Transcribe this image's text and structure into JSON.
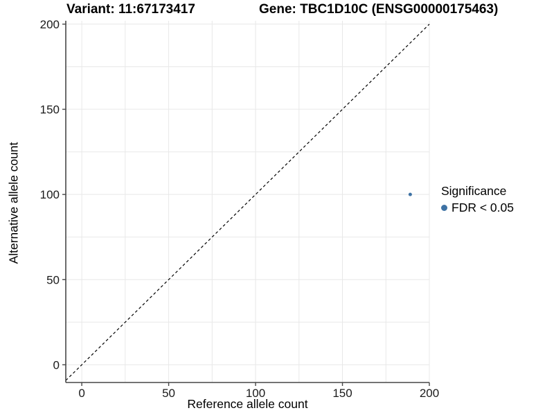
{
  "header": {
    "variant_title": "Variant: 11:67173417",
    "gene_title": "Gene: TBC1D10C (ENSG00000175463)"
  },
  "chart_data": {
    "type": "scatter",
    "title_left": "Variant: 11:67173417",
    "title_right": "Gene: TBC1D10C (ENSG00000175463)",
    "xlabel": "Reference allele count",
    "ylabel": "Alternative allele count",
    "xlim": [
      -9.2,
      200
    ],
    "ylim": [
      -10.4,
      202
    ],
    "x_ticks": [
      0,
      50,
      100,
      150,
      200
    ],
    "y_ticks": [
      0,
      50,
      100,
      150,
      200
    ],
    "grid": true,
    "grid_step": 25,
    "grid_color": "#e8e8e8",
    "axis_color": "#464646",
    "reference_line": {
      "type": "identity",
      "style": "dashed",
      "color": "#000000"
    },
    "points": [
      {
        "x": 189,
        "y": 100,
        "series": "FDR < 0.05",
        "color": "#3e72a4"
      }
    ],
    "point_color": "#3e72a4",
    "legend": {
      "position": "right",
      "title": "Significance",
      "entries": [
        {
          "label": "FDR < 0.05",
          "color": "#3e72a4"
        }
      ]
    }
  }
}
